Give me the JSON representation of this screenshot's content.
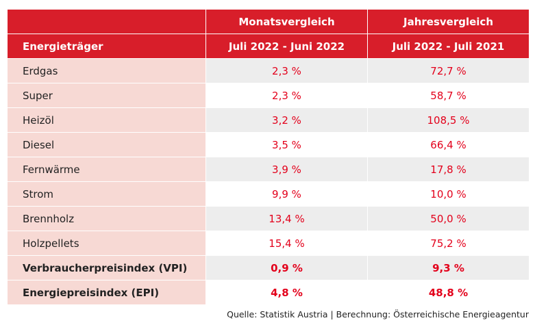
{
  "table": {
    "header_row1": {
      "col1": "",
      "col2": "Monatsvergleich",
      "col3": "Jahresvergleich"
    },
    "header_row2": {
      "col1": "Energieträger",
      "col2": "Juli 2022 - Juni 2022",
      "col3": "Juli 2022 - Juli 2021"
    },
    "rows": [
      {
        "name": "Erdgas",
        "month": "2,3 %",
        "year": "72,7 %"
      },
      {
        "name": "Super",
        "month": "2,3 %",
        "year": "58,7 %"
      },
      {
        "name": "Heizöl",
        "month": "3,2 %",
        "year": "108,5 %"
      },
      {
        "name": "Diesel",
        "month": "3,5 %",
        "year": "66,4 %"
      },
      {
        "name": "Fernwärme",
        "month": "3,9 %",
        "year": "17,8 %"
      },
      {
        "name": "Strom",
        "month": "9,9 %",
        "year": "10,0 %"
      },
      {
        "name": "Brennholz",
        "month": "13,4 %",
        "year": "50,0 %"
      },
      {
        "name": "Holzpellets",
        "month": "15,4 %",
        "year": "75,2 %"
      }
    ],
    "summary_rows": [
      {
        "name": "Verbraucherpreisindex (VPI)",
        "month": "0,9 %",
        "year": "9,3 %"
      },
      {
        "name": "Energiepreisindex (EPI)",
        "month": "4,8 %",
        "year": "48,8 %"
      }
    ]
  },
  "source": "Quelle: Statistik Austria | Berechnung: Österreichische Energieagentur",
  "colors": {
    "header_red": "#d81e2a",
    "value_red": "#e3001b",
    "name_cell_pink": "#f7d9d4",
    "value_cell_grey": "#ededed"
  }
}
